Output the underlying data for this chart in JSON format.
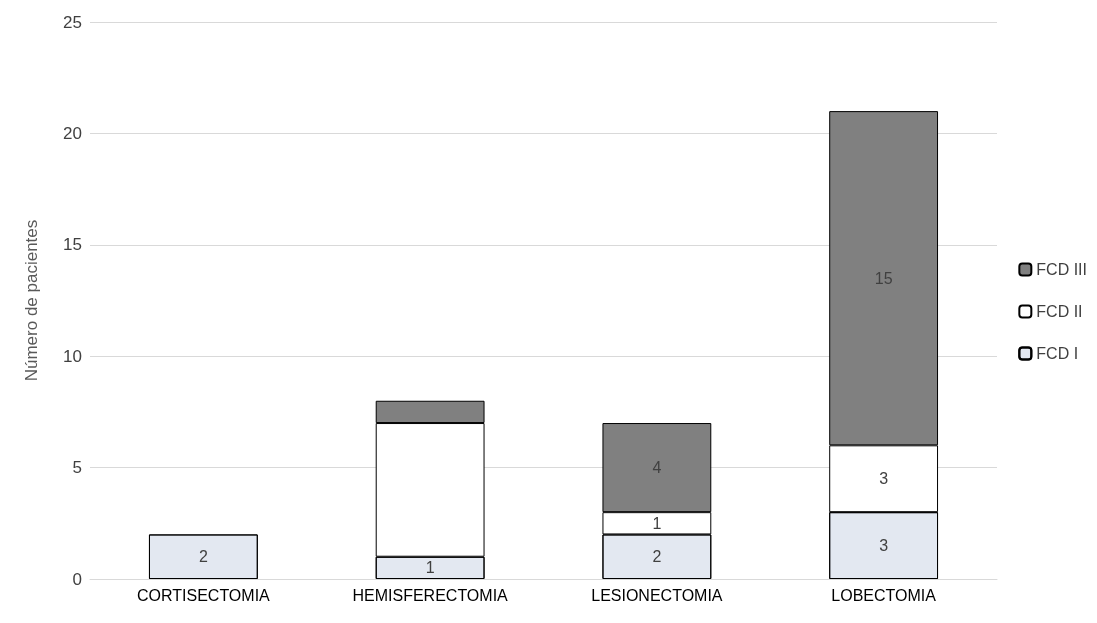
{
  "chart_data": {
    "type": "bar",
    "stacked": true,
    "ylabel": "Número de pacientes",
    "categories": [
      "CORTISECTOMIA",
      "HEMISFERECTOMIA",
      "LESIONECTOMIA",
      "LOBECTOMIA"
    ],
    "series": [
      {
        "name": "FCD I",
        "color": "#e3e8f1",
        "values": [
          2,
          1,
          2,
          3
        ],
        "value_labels": [
          "2",
          "1",
          "2",
          "3"
        ]
      },
      {
        "name": "FCD II",
        "color": "#ffffff",
        "values": [
          null,
          6,
          1,
          3
        ],
        "value_labels": [
          null,
          null,
          "1",
          "3"
        ]
      },
      {
        "name": "FCD III",
        "color": "#808080",
        "values": [
          null,
          1,
          4,
          15
        ],
        "value_labels": [
          null,
          null,
          "4",
          "15"
        ]
      }
    ],
    "ylim": [
      0,
      25
    ],
    "yticks": [
      0,
      5,
      10,
      15,
      20,
      25
    ],
    "grid": "y",
    "legend": "right"
  }
}
